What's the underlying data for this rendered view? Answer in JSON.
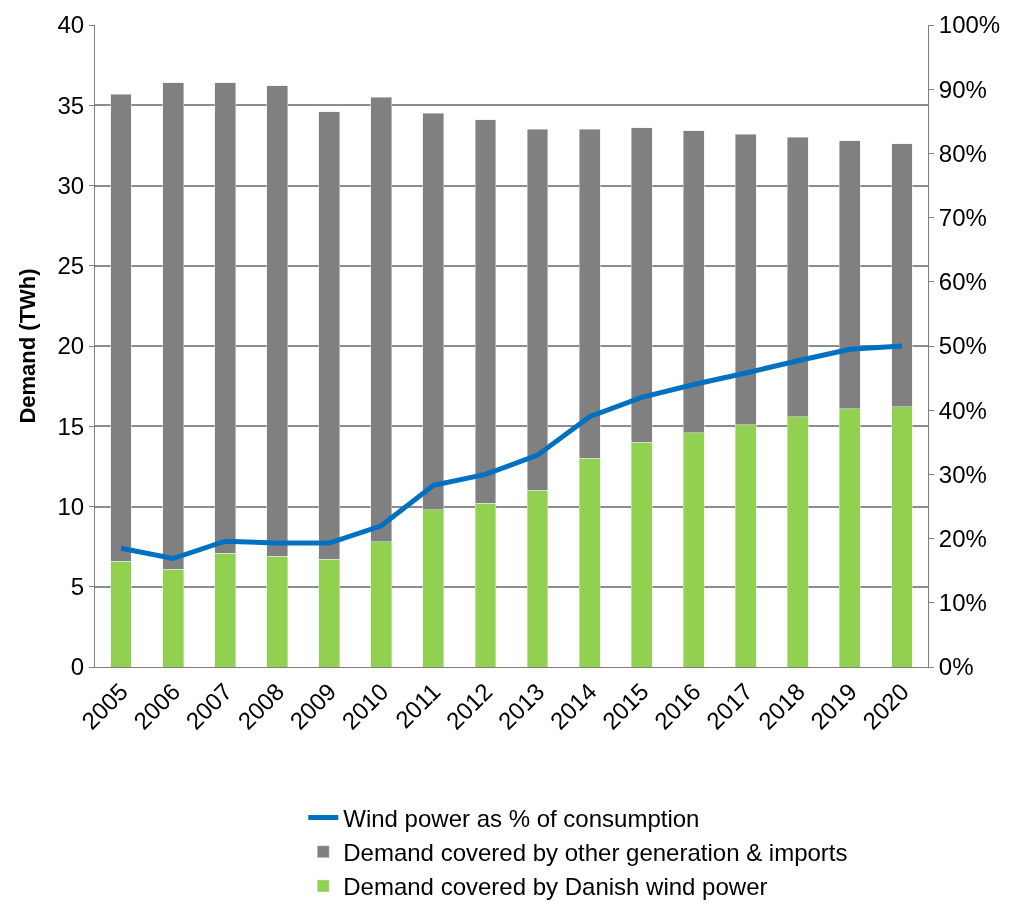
{
  "chart_data": {
    "type": "bar",
    "stacked": true,
    "ylabel": "Demand (TWh)",
    "categories": [
      "2005",
      "2006",
      "2007",
      "2008",
      "2009",
      "2010",
      "2011",
      "2012",
      "2013",
      "2014",
      "2015",
      "2016",
      "2017",
      "2018",
      "2019",
      "2020"
    ],
    "series": [
      {
        "name": "Demand covered by Danish wind power",
        "color": "#92d050",
        "values": [
          6.6,
          6.1,
          7.1,
          6.9,
          6.7,
          7.8,
          9.8,
          10.2,
          11.0,
          13.0,
          14.0,
          14.6,
          15.1,
          15.6,
          16.1,
          16.2
        ]
      },
      {
        "name": "Demand covered by other generation & imports",
        "color": "#808080",
        "values": [
          29.1,
          30.3,
          29.3,
          29.3,
          27.9,
          27.7,
          24.7,
          23.9,
          22.5,
          20.5,
          19.6,
          18.8,
          18.1,
          17.4,
          16.7,
          16.4
        ]
      },
      {
        "name": "Wind power as % of consumption",
        "type": "line",
        "axis": "y2",
        "color": "#0070c0",
        "values": [
          18.5,
          16.9,
          19.6,
          19.3,
          19.3,
          22,
          28.3,
          30,
          33,
          39,
          42,
          44,
          45.8,
          47.7,
          49.5,
          50
        ]
      }
    ],
    "ylim": [
      0,
      40
    ],
    "yticks": [
      0,
      5,
      10,
      15,
      20,
      25,
      30,
      35,
      40
    ],
    "y2lim": [
      0,
      100
    ],
    "y2ticks": [
      {
        "value": 0,
        "label": "0%"
      },
      {
        "value": 10,
        "label": "10%"
      },
      {
        "value": 20,
        "label": "20%"
      },
      {
        "value": 30,
        "label": "30%"
      },
      {
        "value": 40,
        "label": "40%"
      },
      {
        "value": 50,
        "label": "50%"
      },
      {
        "value": 60,
        "label": "60%"
      },
      {
        "value": 70,
        "label": "70%"
      },
      {
        "value": 80,
        "label": "80%"
      },
      {
        "value": 90,
        "label": "90%"
      },
      {
        "value": 100,
        "label": "100%"
      }
    ],
    "grid": "y",
    "legend": "bottom"
  }
}
